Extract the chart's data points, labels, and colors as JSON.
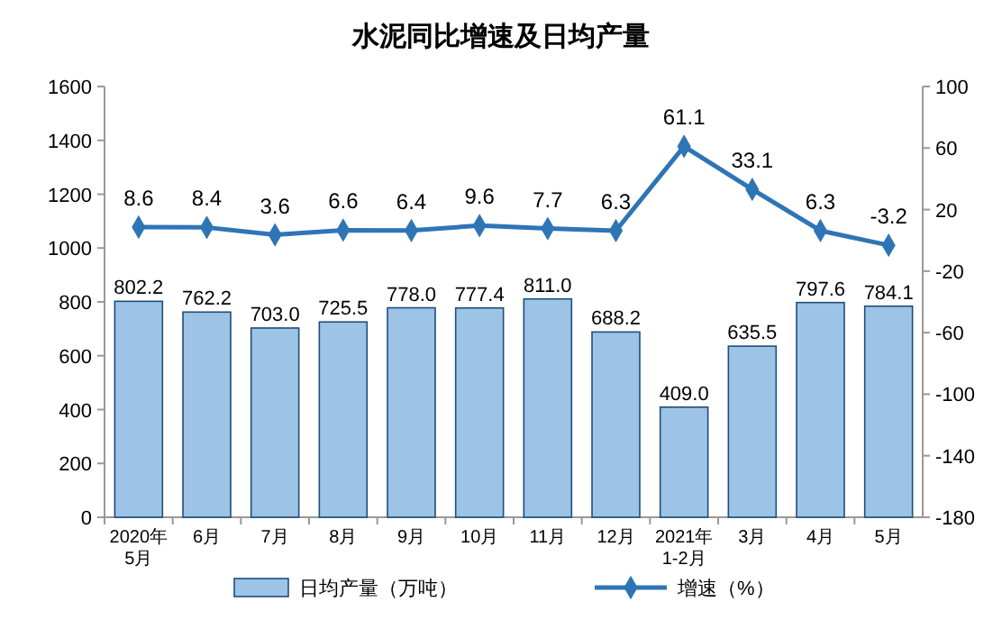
{
  "chart_data": {
    "type": "bar",
    "title": "水泥同比增速及日均产量",
    "categories": [
      "2020年\n5月",
      "6月",
      "7月",
      "8月",
      "9月",
      "10月",
      "11月",
      "12月",
      "2021年\n1-2月",
      "3月",
      "4月",
      "5月"
    ],
    "series": [
      {
        "name": "日均产量（万吨）",
        "color": "#9dc3e6",
        "values": [
          802.2,
          762.2,
          703.0,
          725.5,
          778.0,
          777.4,
          811.0,
          688.2,
          409.0,
          635.5,
          797.6,
          784.1
        ],
        "value_labels": [
          "802.2",
          "762.2",
          "703.0",
          "725.5",
          "778.0",
          "777.4",
          "811.0",
          "688.2",
          "409.0",
          "635.5",
          "797.6",
          "784.1"
        ]
      },
      {
        "name": "增速（%）",
        "type": "line",
        "axis": "y2",
        "color": "#2e75b6",
        "marker": "diamond",
        "values": [
          8.6,
          8.4,
          3.6,
          6.6,
          6.4,
          9.6,
          7.7,
          6.3,
          61.1,
          33.1,
          6.3,
          -3.2
        ],
        "value_labels": [
          "8.6",
          "8.4",
          "3.6",
          "6.6",
          "6.4",
          "9.6",
          "7.7",
          "6.3",
          "61.1",
          "33.1",
          "6.3",
          "-3.2"
        ]
      }
    ],
    "ylim": [
      0,
      1600
    ],
    "yticks": [
      0,
      200,
      400,
      600,
      800,
      1000,
      1200,
      1400,
      1600
    ],
    "y2lim": [
      -180,
      100
    ],
    "y2ticks": [
      -180,
      -140,
      -100,
      -60,
      -20,
      20,
      60,
      100
    ],
    "legend": "bottom",
    "grid": false
  }
}
